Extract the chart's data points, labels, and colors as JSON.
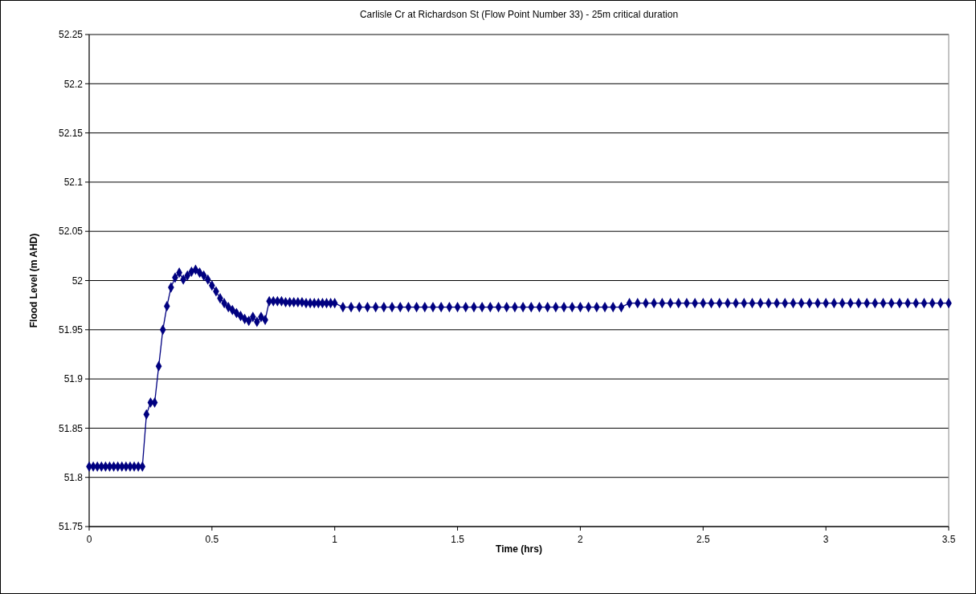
{
  "chart_data": {
    "type": "line",
    "title": "Carlisle Cr at Richardson St (Flow Point Number 33) - 25m critical duration",
    "xlabel": "Time (hrs)",
    "ylabel": "Flood Level (m AHD)",
    "x": [
      0,
      0.0167,
      0.0333,
      0.05,
      0.0667,
      0.0833,
      0.1,
      0.1167,
      0.1333,
      0.15,
      0.1667,
      0.1833,
      0.2,
      0.2167,
      0.2333,
      0.25,
      0.2667,
      0.2833,
      0.3,
      0.3167,
      0.3333,
      0.35,
      0.3667,
      0.3833,
      0.4,
      0.4167,
      0.4333,
      0.45,
      0.4667,
      0.4833,
      0.5,
      0.5167,
      0.5333,
      0.55,
      0.5667,
      0.5833,
      0.6,
      0.6167,
      0.6333,
      0.65,
      0.6667,
      0.6833,
      0.7,
      0.7167,
      0.7333,
      0.75,
      0.7667,
      0.7833,
      0.8,
      0.8167,
      0.8333,
      0.85,
      0.8667,
      0.8833,
      0.9,
      0.9167,
      0.9333,
      0.95,
      0.9667,
      0.9833,
      1,
      1.0333,
      1.0667,
      1.1,
      1.1333,
      1.1667,
      1.2,
      1.2333,
      1.2667,
      1.3,
      1.3333,
      1.3667,
      1.4,
      1.4333,
      1.4667,
      1.5,
      1.5333,
      1.5667,
      1.6,
      1.6333,
      1.6667,
      1.7,
      1.7333,
      1.7667,
      1.8,
      1.8333,
      1.8667,
      1.9,
      1.9333,
      1.9667,
      2,
      2.0333,
      2.0667,
      2.1,
      2.1333,
      2.1667,
      2.2,
      2.2333,
      2.2667,
      2.3,
      2.3333,
      2.3667,
      2.4,
      2.4333,
      2.4667,
      2.5,
      2.5333,
      2.5667,
      2.6,
      2.6333,
      2.6667,
      2.7,
      2.7333,
      2.7667,
      2.8,
      2.8333,
      2.8667,
      2.9,
      2.9333,
      2.9667,
      3,
      3.0333,
      3.0667,
      3.1,
      3.1333,
      3.1667,
      3.2,
      3.2333,
      3.2667,
      3.3,
      3.3333,
      3.3667,
      3.4,
      3.4333,
      3.4667,
      3.5
    ],
    "series": [
      {
        "color": "#000080",
        "values": [
          51.811,
          51.811,
          51.811,
          51.811,
          51.811,
          51.811,
          51.811,
          51.811,
          51.811,
          51.811,
          51.811,
          51.811,
          51.811,
          51.811,
          51.864,
          51.876,
          51.876,
          51.913,
          51.95,
          51.974,
          51.993,
          52.003,
          52.008,
          52.001,
          52.005,
          52.009,
          52.011,
          52.008,
          52.005,
          52.001,
          51.995,
          51.989,
          51.982,
          51.977,
          51.973,
          51.97,
          51.967,
          51.964,
          51.961,
          51.959,
          51.963,
          51.958,
          51.963,
          51.96,
          51.979,
          51.979,
          51.979,
          51.979,
          51.978,
          51.978,
          51.978,
          51.978,
          51.978,
          51.977,
          51.977,
          51.977,
          51.977,
          51.977,
          51.977,
          51.977,
          51.977,
          51.973,
          51.973,
          51.973,
          51.973,
          51.973,
          51.973,
          51.973,
          51.973,
          51.973,
          51.973,
          51.973,
          51.973,
          51.973,
          51.973,
          51.973,
          51.973,
          51.973,
          51.973,
          51.973,
          51.973,
          51.973,
          51.973,
          51.973,
          51.973,
          51.973,
          51.973,
          51.973,
          51.973,
          51.973,
          51.973,
          51.973,
          51.973,
          51.973,
          51.973,
          51.973,
          51.977,
          51.977,
          51.977,
          51.977,
          51.977,
          51.977,
          51.977,
          51.977,
          51.977,
          51.977,
          51.977,
          51.977,
          51.977,
          51.977,
          51.977,
          51.977,
          51.977,
          51.977,
          51.977,
          51.977,
          51.977,
          51.977,
          51.977,
          51.977,
          51.977,
          51.977,
          51.977,
          51.977,
          51.977,
          51.977,
          51.977,
          51.977,
          51.977,
          51.977,
          51.977,
          51.977,
          51.977,
          51.977,
          51.977,
          51.977
        ]
      }
    ],
    "xlim": [
      0,
      3.5
    ],
    "xticks": [
      0,
      0.5,
      1,
      1.5,
      2,
      2.5,
      3,
      3.5
    ],
    "ylim": [
      51.75,
      52.25
    ],
    "yticks": [
      51.75,
      51.8,
      51.85,
      51.9,
      51.95,
      52,
      52.05,
      52.1,
      52.15,
      52.2,
      52.25
    ],
    "grid": "y",
    "marker": "diamond",
    "line_style": "solid"
  }
}
